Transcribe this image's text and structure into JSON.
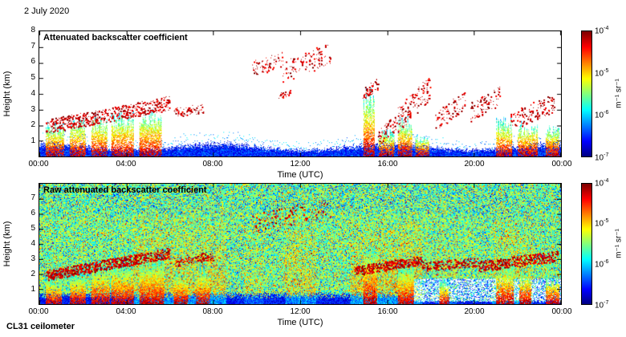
{
  "page": {
    "date_label": "2 July 2020",
    "instrument_label": "CL31 ceilometer"
  },
  "chart_data": [
    {
      "type": "heatmap",
      "panel": "top",
      "title": "Attenuated backscatter coefficient",
      "xlabel": "Time (UTC)",
      "ylabel": "Height (km)",
      "x_hours": [
        0,
        24
      ],
      "xtick_labels": [
        "00:00",
        "04:00",
        "08:00",
        "12:00",
        "16:00",
        "20:00",
        "00:00"
      ],
      "ylim_km": [
        0,
        8
      ],
      "ytick_labels": [
        "8",
        "7",
        "6",
        "5",
        "4",
        "3",
        "2",
        "1"
      ],
      "colorbar": {
        "scale": "log10",
        "min": 1e-07,
        "max": 0.0001,
        "colormap": "jet",
        "base": "10",
        "exponents": [
          "-4",
          "-5",
          "-6",
          "-7"
        ],
        "unit": "m⁻¹ sr⁻¹"
      },
      "background": "white (signal below noise threshold removed)",
      "features": {
        "aerosol_layer": {
          "time_h": [
            0,
            24
          ],
          "top_km_range": [
            0.4,
            1.05
          ],
          "level": "blue, 1e-7 to 1e-6"
        },
        "plumes": [
          {
            "time_h": [
              0.3,
              1.1
            ],
            "top_km": 2.3
          },
          {
            "time_h": [
              1.4,
              2.1
            ],
            "top_km": 2.6
          },
          {
            "time_h": [
              2.4,
              3.1
            ],
            "top_km": 2.8
          },
          {
            "time_h": [
              3.3,
              4.3
            ],
            "top_km": 3.0
          },
          {
            "time_h": [
              4.6,
              5.6
            ],
            "top_km": 3.2
          },
          {
            "time_h": [
              14.9,
              15.4
            ],
            "top_km": 4.6
          },
          {
            "time_h": [
              15.6,
              16.3
            ],
            "top_km": 1.8
          },
          {
            "time_h": [
              16.5,
              17.1
            ],
            "top_km": 2.6
          },
          {
            "time_h": [
              17.3,
              17.9
            ],
            "top_km": 1.5
          },
          {
            "time_h": [
              21.0,
              21.7
            ],
            "top_km": 2.6
          },
          {
            "time_h": [
              22.0,
              22.9
            ],
            "top_km": 2.4
          },
          {
            "time_h": [
              23.3,
              23.9
            ],
            "top_km": 2.2
          }
        ],
        "clouds": [
          {
            "time_h": [
              0.3,
              3.0
            ],
            "base_km": [
              1.9,
              2.6
            ],
            "jitter_km": 0.45,
            "density": 1.0
          },
          {
            "time_h": [
              3.0,
              6.0
            ],
            "base_km": [
              2.6,
              3.4
            ],
            "jitter_km": 0.45,
            "density": 1.0
          },
          {
            "time_h": [
              6.2,
              7.6
            ],
            "base_km": [
              2.8,
              3.1
            ],
            "jitter_km": 0.3,
            "density": 0.45
          },
          {
            "time_h": [
              9.8,
              11.2
            ],
            "base_km": [
              5.6,
              6.2
            ],
            "jitter_km": 0.5,
            "density": 0.5
          },
          {
            "time_h": [
              11.2,
              13.4
            ],
            "base_km": [
              5.4,
              6.6
            ],
            "jitter_km": 0.7,
            "density": 0.5
          },
          {
            "time_h": [
              11.0,
              11.6
            ],
            "base_km": [
              3.9,
              4.1
            ],
            "jitter_km": 0.2,
            "density": 0.35
          },
          {
            "time_h": [
              14.9,
              15.6
            ],
            "base_km": [
              4.0,
              4.6
            ],
            "jitter_km": 0.4,
            "density": 0.7
          },
          {
            "time_h": [
              15.6,
              16.4
            ],
            "base_km": [
              1.2,
              2.2
            ],
            "jitter_km": 0.5,
            "density": 0.8
          },
          {
            "time_h": [
              16.4,
              18.0
            ],
            "base_km": [
              2.2,
              4.4
            ],
            "jitter_km": 0.8,
            "density": 0.8
          },
          {
            "time_h": [
              18.2,
              19.6
            ],
            "base_km": [
              2.2,
              3.6
            ],
            "jitter_km": 0.6,
            "density": 0.6
          },
          {
            "time_h": [
              19.8,
              21.2
            ],
            "base_km": [
              2.8,
              3.9
            ],
            "jitter_km": 0.6,
            "density": 0.6
          },
          {
            "time_h": [
              21.6,
              23.7
            ],
            "base_km": [
              2.2,
              3.4
            ],
            "jitter_km": 0.6,
            "density": 0.6
          }
        ]
      }
    },
    {
      "type": "heatmap",
      "panel": "bottom",
      "title": "Raw attenuated backscatter coefficient",
      "xlabel": "Time (UTC)",
      "ylabel": "Height (km)",
      "x_hours": [
        0,
        24
      ],
      "xtick_labels": [
        "00:00",
        "04:00",
        "08:00",
        "12:00",
        "16:00",
        "20:00",
        "00:00"
      ],
      "ylim_km": [
        0,
        8
      ],
      "ytick_labels": [
        "7",
        "6",
        "5",
        "4",
        "3",
        "2",
        "1"
      ],
      "colorbar": {
        "scale": "log10",
        "min": 1e-07,
        "max": 0.0001,
        "colormap": "jet",
        "base": "10",
        "exponents": [
          "-4",
          "-5",
          "-6",
          "-7"
        ],
        "unit": "m⁻¹ sr⁻¹"
      },
      "background": "full-field speckle noise ~1e-7 to 1e-5 (green/yellow) at all heights",
      "features": {
        "aerosol_layer": {
          "time_h": [
            0,
            17.2
          ],
          "top_km_range": [
            0.35,
            0.85
          ]
        },
        "low_signal_region": {
          "time_h": [
            17.2,
            24
          ],
          "below_km": 1.7
        },
        "haze_bands": [
          {
            "time_h": [
              4.3,
              8.6
            ],
            "top_km": 6.5,
            "boost": 0.2
          },
          {
            "time_h": [
              9.4,
              10.3
            ],
            "top_km": 5.5,
            "boost": 0.1
          },
          {
            "time_h": [
              11.3,
              12.7
            ],
            "top_km": 7.0,
            "boost": 0.18
          },
          {
            "time_h": [
              14.3,
              17.6
            ],
            "top_km": 6.5,
            "boost": 0.22
          },
          {
            "time_h": [
              18.2,
              19.2
            ],
            "top_km": 5.0,
            "boost": 0.1
          },
          {
            "time_h": [
              20.8,
              22.7
            ],
            "top_km": 6.0,
            "boost": 0.18
          }
        ],
        "plumes": [
          {
            "time_h": [
              0.3,
              1.0
            ],
            "top_km": 2.0
          },
          {
            "time_h": [
              1.4,
              2.1
            ],
            "top_km": 2.4
          },
          {
            "time_h": [
              2.4,
              3.2
            ],
            "top_km": 3.0
          },
          {
            "time_h": [
              3.3,
              4.3
            ],
            "top_km": 3.2
          },
          {
            "time_h": [
              4.6,
              5.7
            ],
            "top_km": 3.4
          },
          {
            "time_h": [
              6.2,
              6.8
            ],
            "top_km": 2.5
          },
          {
            "time_h": [
              7.2,
              7.8
            ],
            "top_km": 2.8
          },
          {
            "time_h": [
              14.9,
              15.5
            ],
            "top_km": 4.5
          },
          {
            "time_h": [
              16.5,
              17.2
            ],
            "top_km": 3.0
          },
          {
            "time_h": [
              18.4,
              18.8
            ],
            "top_km": 1.8
          },
          {
            "time_h": [
              21.0,
              21.8
            ],
            "top_km": 3.0
          },
          {
            "time_h": [
              22.1,
              22.6
            ],
            "top_km": 2.6
          },
          {
            "time_h": [
              23.3,
              23.9
            ],
            "top_km": 2.2
          }
        ],
        "clouds": [
          {
            "time_h": [
              0.3,
              3.0
            ],
            "base_km": [
              1.9,
              2.6
            ],
            "jitter_km": 0.35,
            "density": 1.4
          },
          {
            "time_h": [
              3.0,
              6.0
            ],
            "base_km": [
              2.6,
              3.4
            ],
            "jitter_km": 0.35,
            "density": 1.4
          },
          {
            "time_h": [
              6.2,
              8.0
            ],
            "base_km": [
              2.8,
              3.2
            ],
            "jitter_km": 0.3,
            "density": 0.6
          },
          {
            "time_h": [
              9.8,
              13.4
            ],
            "base_km": [
              5.4,
              6.4
            ],
            "jitter_km": 0.6,
            "density": 0.4
          },
          {
            "time_h": [
              14.5,
              17.6
            ],
            "base_km": [
              2.2,
              2.9
            ],
            "jitter_km": 0.3,
            "density": 1.4
          },
          {
            "time_h": [
              17.6,
              20.2
            ],
            "base_km": [
              2.5,
              2.8
            ],
            "jitter_km": 0.3,
            "density": 0.9
          },
          {
            "time_h": [
              20.2,
              23.9
            ],
            "base_km": [
              2.5,
              3.2
            ],
            "jitter_km": 0.35,
            "density": 1.2
          }
        ]
      }
    }
  ]
}
